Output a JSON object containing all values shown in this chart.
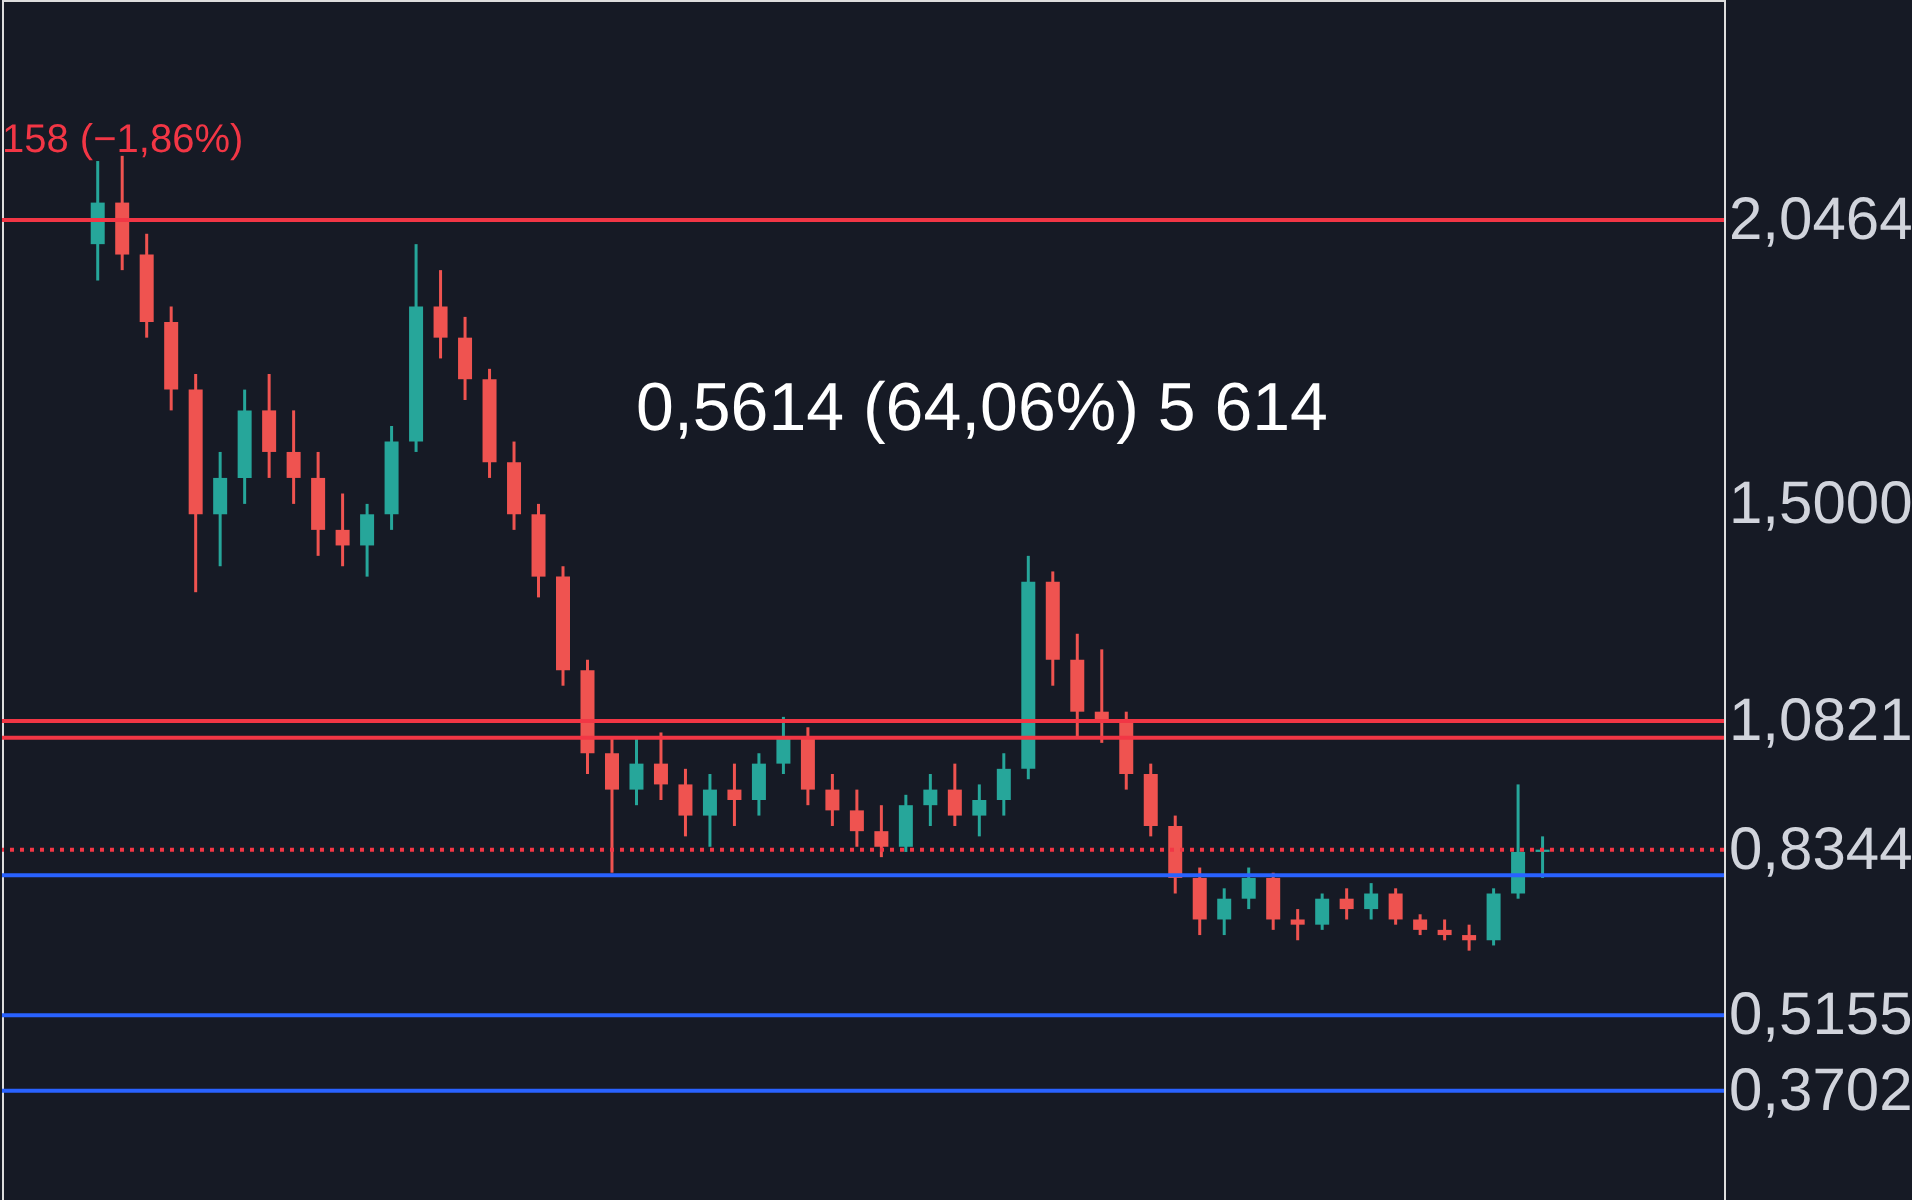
{
  "chart_data": {
    "type": "candlestick",
    "annotations": [
      "0,5614 (64,06%) 5 614",
      "158 (−1,86%)"
    ],
    "categories": [
      null,
      null,
      null,
      null,
      null,
      null,
      null,
      null,
      null,
      null,
      null,
      null,
      null,
      null,
      null,
      null,
      null,
      null,
      null,
      null,
      null,
      null,
      null,
      null,
      null,
      null,
      null,
      null,
      null,
      null,
      null,
      null,
      null,
      null,
      null,
      null,
      null,
      null,
      null,
      null,
      null,
      null,
      null,
      null,
      null,
      null,
      null,
      null,
      null,
      null,
      null,
      null,
      null,
      null,
      null,
      null,
      null,
      null,
      null,
      null
    ],
    "ohlc": [
      [
        2.0,
        2.16,
        1.93,
        2.08
      ],
      [
        2.08,
        2.17,
        1.95,
        1.98
      ],
      [
        1.98,
        2.02,
        1.82,
        1.85
      ],
      [
        1.85,
        1.88,
        1.68,
        1.72
      ],
      [
        1.72,
        1.75,
        1.33,
        1.48
      ],
      [
        1.48,
        1.6,
        1.38,
        1.55
      ],
      [
        1.55,
        1.72,
        1.5,
        1.68
      ],
      [
        1.68,
        1.75,
        1.55,
        1.6
      ],
      [
        1.6,
        1.68,
        1.5,
        1.55
      ],
      [
        1.55,
        1.6,
        1.4,
        1.45
      ],
      [
        1.45,
        1.52,
        1.38,
        1.42
      ],
      [
        1.42,
        1.5,
        1.36,
        1.48
      ],
      [
        1.48,
        1.65,
        1.45,
        1.62
      ],
      [
        1.62,
        2.0,
        1.6,
        1.88
      ],
      [
        1.88,
        1.95,
        1.78,
        1.82
      ],
      [
        1.82,
        1.86,
        1.7,
        1.74
      ],
      [
        1.74,
        1.76,
        1.55,
        1.58
      ],
      [
        1.58,
        1.62,
        1.45,
        1.48
      ],
      [
        1.48,
        1.5,
        1.32,
        1.36
      ],
      [
        1.36,
        1.38,
        1.15,
        1.18
      ],
      [
        1.18,
        1.2,
        0.98,
        1.02
      ],
      [
        1.02,
        1.05,
        0.79,
        0.95
      ],
      [
        0.95,
        1.05,
        0.92,
        1.0
      ],
      [
        1.0,
        1.06,
        0.93,
        0.96
      ],
      [
        0.96,
        0.99,
        0.86,
        0.9
      ],
      [
        0.9,
        0.98,
        0.84,
        0.95
      ],
      [
        0.95,
        1.0,
        0.88,
        0.93
      ],
      [
        0.93,
        1.02,
        0.9,
        1.0
      ],
      [
        1.0,
        1.09,
        0.98,
        1.05
      ],
      [
        1.05,
        1.07,
        0.92,
        0.95
      ],
      [
        0.95,
        0.98,
        0.88,
        0.91
      ],
      [
        0.91,
        0.95,
        0.84,
        0.87
      ],
      [
        0.87,
        0.92,
        0.82,
        0.84
      ],
      [
        0.84,
        0.94,
        0.83,
        0.92
      ],
      [
        0.92,
        0.98,
        0.88,
        0.95
      ],
      [
        0.95,
        1.0,
        0.88,
        0.9
      ],
      [
        0.9,
        0.96,
        0.86,
        0.93
      ],
      [
        0.93,
        1.02,
        0.9,
        0.99
      ],
      [
        0.99,
        1.4,
        0.97,
        1.35
      ],
      [
        1.35,
        1.37,
        1.15,
        1.2
      ],
      [
        1.2,
        1.25,
        1.05,
        1.1
      ],
      [
        1.1,
        1.22,
        1.04,
        1.08
      ],
      [
        1.08,
        1.1,
        0.95,
        0.98
      ],
      [
        0.98,
        1.0,
        0.86,
        0.88
      ],
      [
        0.88,
        0.9,
        0.75,
        0.78
      ],
      [
        0.78,
        0.8,
        0.67,
        0.7
      ],
      [
        0.7,
        0.76,
        0.67,
        0.74
      ],
      [
        0.74,
        0.8,
        0.72,
        0.78
      ],
      [
        0.78,
        0.79,
        0.68,
        0.7
      ],
      [
        0.7,
        0.72,
        0.66,
        0.69
      ],
      [
        0.69,
        0.75,
        0.68,
        0.74
      ],
      [
        0.74,
        0.76,
        0.7,
        0.72
      ],
      [
        0.72,
        0.77,
        0.7,
        0.75
      ],
      [
        0.75,
        0.76,
        0.69,
        0.7
      ],
      [
        0.7,
        0.71,
        0.67,
        0.68
      ],
      [
        0.68,
        0.7,
        0.66,
        0.67
      ],
      [
        0.67,
        0.69,
        0.64,
        0.66
      ],
      [
        0.66,
        0.76,
        0.65,
        0.75
      ],
      [
        0.75,
        0.96,
        0.74,
        0.83
      ],
      [
        0.83,
        0.86,
        0.78,
        0.8344
      ]
    ],
    "ylim": [
      0.16,
      2.47
    ],
    "yticks": [
      {
        "value": 2.0464,
        "label": "2,0464"
      },
      {
        "value": 1.5,
        "label": "1,5000"
      },
      {
        "value": 1.0821,
        "label": "1,0821"
      },
      {
        "value": 0.8344,
        "label": "0,8344"
      },
      {
        "value": 0.5155,
        "label": "0,5155"
      },
      {
        "value": 0.3702,
        "label": "0,3702"
      }
    ],
    "ref_lines": [
      {
        "axis": "y",
        "value": 2.0464,
        "color": "#f23645"
      },
      {
        "axis": "y",
        "value": 1.0821,
        "color": "#f23645"
      },
      {
        "axis": "y",
        "value": 1.05,
        "color": "#f23645"
      },
      {
        "axis": "y",
        "value": 0.8344,
        "color": "#f23645",
        "line_style": "dotted"
      },
      {
        "axis": "y",
        "value": 0.785,
        "color": "#2962ff"
      },
      {
        "axis": "y",
        "value": 0.5155,
        "color": "#2962ff"
      },
      {
        "axis": "y",
        "value": 0.3702,
        "color": "#2962ff"
      }
    ],
    "grid": false
  }
}
